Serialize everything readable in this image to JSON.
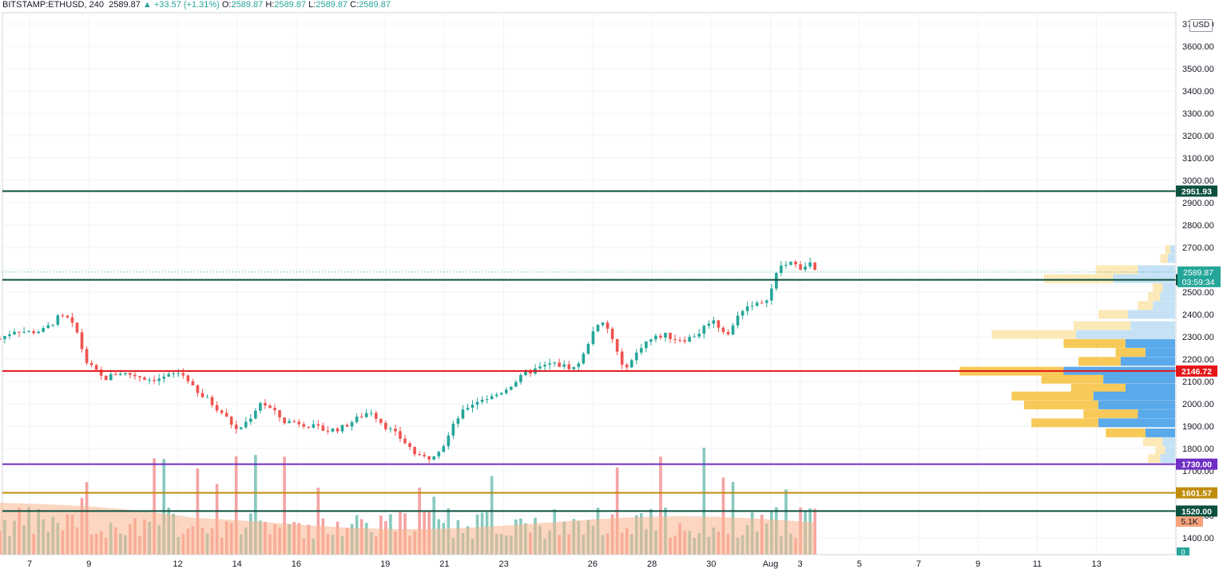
{
  "header": {
    "symbol": "BITSTAMP:ETHUSD",
    "interval": "240",
    "last": "2589.87",
    "change": "▲ +33.57 (+1.31%)",
    "o_label": "O:",
    "o": "2589.87",
    "h_label": "H:",
    "h": "2589.87",
    "l_label": "L:",
    "l": "2589.87",
    "c_label": "C:",
    "c": "2589.87"
  },
  "currency": "USD",
  "colors": {
    "up": "#26a69a",
    "down": "#ef5350",
    "vol_up": "#88c9bf",
    "vol_down": "#f5a3a3",
    "vol_ma": "#f9b58d",
    "resistance": "#0b4f3f",
    "support_red": "#e5161a",
    "support_purple": "#6f2fc4",
    "support_gold": "#c08c0b",
    "vp_blue": "#5aa9ea",
    "vp_gold": "#f7c958",
    "vp_blue_light": "#c5e1f6",
    "vp_gold_light": "#fce9b8"
  },
  "chart_data": {
    "type": "candlestick",
    "title": "BITSTAMP:ETHUSD, 240",
    "ylim": [
      1320,
      3720
    ],
    "y_ticks": [
      "3700.00",
      "3600.00",
      "3500.00",
      "3400.00",
      "3300.00",
      "3200.00",
      "3100.00",
      "3000.00",
      "2900.00",
      "2800.00",
      "2700.00",
      "2600.00",
      "2500.00",
      "2400.00",
      "2300.00",
      "2200.00",
      "2100.00",
      "2000.00",
      "1900.00",
      "1800.00",
      "1700.00",
      "1600.00",
      "1500.00",
      "1400.00"
    ],
    "x_ticks": [
      {
        "label": "7",
        "day": 7
      },
      {
        "label": "9",
        "day": 9
      },
      {
        "label": "12",
        "day": 12
      },
      {
        "label": "14",
        "day": 14
      },
      {
        "label": "16",
        "day": 16
      },
      {
        "label": "19",
        "day": 19
      },
      {
        "label": "21",
        "day": 21
      },
      {
        "label": "23",
        "day": 23
      },
      {
        "label": "26",
        "day": 26
      },
      {
        "label": "28",
        "day": 28
      },
      {
        "label": "30",
        "day": 30
      },
      {
        "label": "Aug",
        "day": 32
      },
      {
        "label": "3",
        "day": 33
      },
      {
        "label": "5",
        "day": 35
      },
      {
        "label": "7",
        "day": 37
      },
      {
        "label": "9",
        "day": 39
      },
      {
        "label": "11",
        "day": 41
      },
      {
        "label": "13",
        "day": 43
      }
    ],
    "price_path": [
      [
        6.0,
        2290
      ],
      [
        6.5,
        2330
      ],
      [
        7.0,
        2320
      ],
      [
        7.5,
        2330
      ],
      [
        8.0,
        2390
      ],
      [
        8.3,
        2380
      ],
      [
        8.6,
        2320
      ],
      [
        8.9,
        2190
      ],
      [
        9.2,
        2150
      ],
      [
        9.5,
        2110
      ],
      [
        10.0,
        2140
      ],
      [
        10.5,
        2130
      ],
      [
        11.0,
        2110
      ],
      [
        11.5,
        2115
      ],
      [
        12.0,
        2140
      ],
      [
        12.3,
        2120
      ],
      [
        12.6,
        2050
      ],
      [
        13.0,
        2020
      ],
      [
        13.5,
        1960
      ],
      [
        14.0,
        1880
      ],
      [
        14.4,
        1930
      ],
      [
        14.8,
        2010
      ],
      [
        15.2,
        1970
      ],
      [
        15.6,
        1920
      ],
      [
        16.0,
        1920
      ],
      [
        16.5,
        1900
      ],
      [
        17.0,
        1880
      ],
      [
        17.5,
        1890
      ],
      [
        18.0,
        1930
      ],
      [
        18.5,
        1970
      ],
      [
        19.0,
        1900
      ],
      [
        19.4,
        1860
      ],
      [
        19.8,
        1810
      ],
      [
        20.1,
        1760
      ],
      [
        20.5,
        1760
      ],
      [
        21.0,
        1820
      ],
      [
        21.4,
        1930
      ],
      [
        21.8,
        1990
      ],
      [
        22.2,
        2020
      ],
      [
        22.6,
        2030
      ],
      [
        23.0,
        2060
      ],
      [
        23.4,
        2100
      ],
      [
        23.8,
        2140
      ],
      [
        24.2,
        2160
      ],
      [
        24.6,
        2180
      ],
      [
        25.0,
        2170
      ],
      [
        25.4,
        2160
      ],
      [
        25.7,
        2220
      ],
      [
        26.0,
        2330
      ],
      [
        26.4,
        2360
      ],
      [
        26.7,
        2280
      ],
      [
        27.0,
        2160
      ],
      [
        27.3,
        2190
      ],
      [
        27.7,
        2270
      ],
      [
        28.0,
        2290
      ],
      [
        28.4,
        2310
      ],
      [
        28.8,
        2290
      ],
      [
        29.2,
        2290
      ],
      [
        29.6,
        2320
      ],
      [
        30.0,
        2380
      ],
      [
        30.3,
        2340
      ],
      [
        30.6,
        2310
      ],
      [
        31.0,
        2420
      ],
      [
        31.4,
        2450
      ],
      [
        31.7,
        2440
      ],
      [
        32.0,
        2500
      ],
      [
        32.3,
        2620
      ],
      [
        32.6,
        2620
      ],
      [
        32.9,
        2640
      ],
      [
        33.1,
        2590
      ],
      [
        33.3,
        2640
      ],
      [
        33.5,
        2590
      ]
    ],
    "candles_count": 170,
    "volume_ma": "smoothed area (orange)",
    "volume_label": "5.1K",
    "levels": [
      {
        "value": 2951.93,
        "label": "2951.93",
        "color": "#0b4f3f"
      },
      {
        "value": 2555.06,
        "label": "2555.06",
        "color": "#0b4f3f"
      },
      {
        "value": 2146.72,
        "label": "2146.72",
        "color": "#e5161a"
      },
      {
        "value": 1730.0,
        "label": "1730.00",
        "color": "#6f2fc4"
      },
      {
        "value": 1601.57,
        "label": "1601.57",
        "color": "#c08c0b"
      },
      {
        "value": 1520.0,
        "label": "1520.00",
        "color": "#0b4f3f"
      }
    ],
    "last_price": {
      "value": 2589.87,
      "label": "2589.87",
      "countdown": "03:59:34"
    },
    "volume_profile": [
      {
        "price": 2690,
        "blue": 0.02,
        "gold": 0.02,
        "faded": true
      },
      {
        "price": 2650,
        "blue": 0.03,
        "gold": 0.03,
        "faded": true
      },
      {
        "price": 2600,
        "blue": 0.15,
        "gold": 0.17,
        "faded": true
      },
      {
        "price": 2560,
        "blue": 0.25,
        "gold": 0.28,
        "faded": true
      },
      {
        "price": 2520,
        "blue": 0.05,
        "gold": 0.04,
        "faded": true
      },
      {
        "price": 2480,
        "blue": 0.06,
        "gold": 0.05,
        "faded": true
      },
      {
        "price": 2440,
        "blue": 0.09,
        "gold": 0.06,
        "faded": true
      },
      {
        "price": 2400,
        "blue": 0.19,
        "gold": 0.12,
        "faded": true
      },
      {
        "price": 2350,
        "blue": 0.18,
        "gold": 0.23,
        "faded": true
      },
      {
        "price": 2310,
        "blue": 0.4,
        "gold": 0.34,
        "faded": true
      },
      {
        "price": 2270,
        "blue": 0.2,
        "gold": 0.25,
        "faded": false
      },
      {
        "price": 2230,
        "blue": 0.12,
        "gold": 0.12,
        "faded": false
      },
      {
        "price": 2190,
        "blue": 0.22,
        "gold": 0.17,
        "faded": false
      },
      {
        "price": 2146,
        "blue": 0.45,
        "gold": 0.42,
        "faded": false
      },
      {
        "price": 2110,
        "blue": 0.29,
        "gold": 0.25,
        "faded": false
      },
      {
        "price": 2070,
        "blue": 0.2,
        "gold": 0.22,
        "faded": false
      },
      {
        "price": 2035,
        "blue": 0.33,
        "gold": 0.33,
        "faded": false
      },
      {
        "price": 1995,
        "blue": 0.31,
        "gold": 0.3,
        "faded": false
      },
      {
        "price": 1955,
        "blue": 0.15,
        "gold": 0.22,
        "faded": false
      },
      {
        "price": 1915,
        "blue": 0.31,
        "gold": 0.27,
        "faded": false
      },
      {
        "price": 1870,
        "blue": 0.12,
        "gold": 0.16,
        "faded": false
      },
      {
        "price": 1830,
        "blue": 0.05,
        "gold": 0.08,
        "faded": true
      },
      {
        "price": 1790,
        "blue": 0.04,
        "gold": 0.04,
        "faded": true
      },
      {
        "price": 1755,
        "blue": 0.06,
        "gold": 0.05,
        "faded": true
      }
    ]
  },
  "axis_bottom_label": "0"
}
